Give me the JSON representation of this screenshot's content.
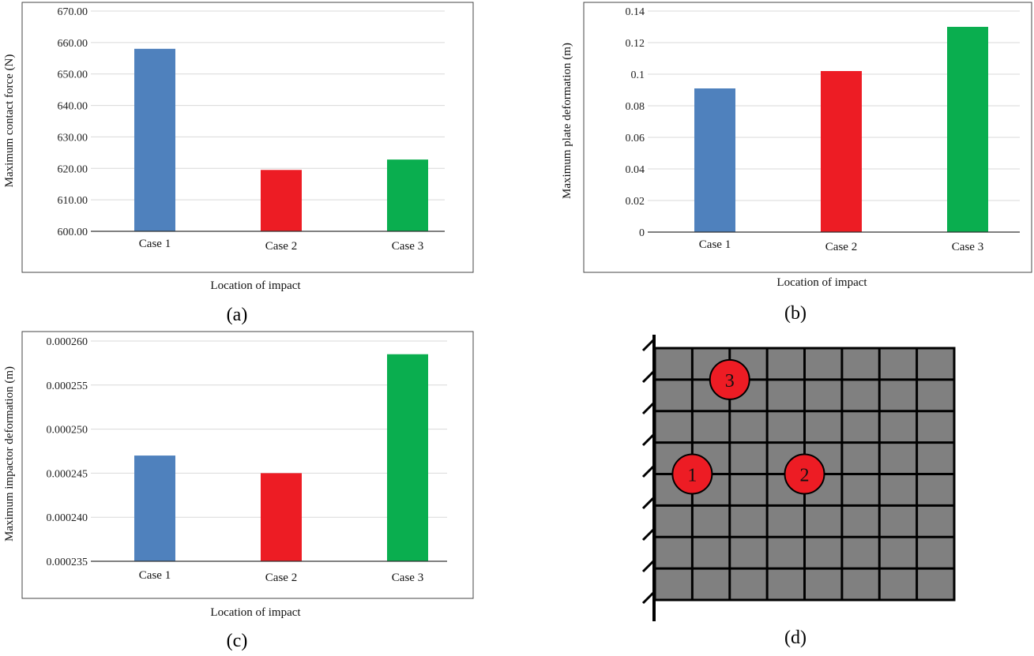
{
  "chart_data": [
    {
      "type": "bar",
      "panel": "(a)",
      "categories": [
        "Case 1",
        "Case 2",
        "Case 3"
      ],
      "values": [
        658,
        619.5,
        622.8
      ],
      "colors": [
        "#4f81bd",
        "#ed1c24",
        "#0aae4f"
      ],
      "ylim": [
        600,
        670
      ],
      "yticks": [
        "600.00",
        "610.00",
        "620.00",
        "630.00",
        "640.00",
        "650.00",
        "660.00",
        "670.00"
      ],
      "xlabel": "Location of impact",
      "ylabel": "Maximum contact force (N)",
      "grid": true
    },
    {
      "type": "bar",
      "panel": "(b)",
      "categories": [
        "Case 1",
        "Case 2",
        "Case 3"
      ],
      "values": [
        0.091,
        0.102,
        0.13
      ],
      "colors": [
        "#4f81bd",
        "#ed1c24",
        "#0aae4f"
      ],
      "ylim": [
        0,
        0.14
      ],
      "yticks": [
        "0",
        "0.02",
        "0.04",
        "0.06",
        "0.08",
        "0.1",
        "0.12",
        "0.14"
      ],
      "xlabel": "Location of impact",
      "ylabel": "Maximum plate deformation  (m)",
      "grid": true
    },
    {
      "type": "bar",
      "panel": "(c)",
      "categories": [
        "Case 1",
        "Case 2",
        "Case 3"
      ],
      "values": [
        0.000247,
        0.000245,
        0.0002585
      ],
      "colors": [
        "#4f81bd",
        "#ed1c24",
        "#0aae4f"
      ],
      "ylim": [
        0.000235,
        0.00026
      ],
      "yticks": [
        "0.000235",
        "0.000240",
        "0.000245",
        "0.000250",
        "0.000255",
        "0.000260"
      ],
      "xlabel": "Location of impact",
      "ylabel": "Maximum impactor deformation  (m)",
      "grid": true
    }
  ],
  "diagram": {
    "panel": "(d)",
    "grid_rows": 8,
    "grid_cols": 8,
    "plate_color": "#808080",
    "marker_color": "#ed1c24",
    "markers": [
      {
        "label": "1",
        "row": 4,
        "col": 1
      },
      {
        "label": "2",
        "row": 4,
        "col": 4
      },
      {
        "label": "3",
        "row": 1,
        "col": 2
      }
    ]
  }
}
